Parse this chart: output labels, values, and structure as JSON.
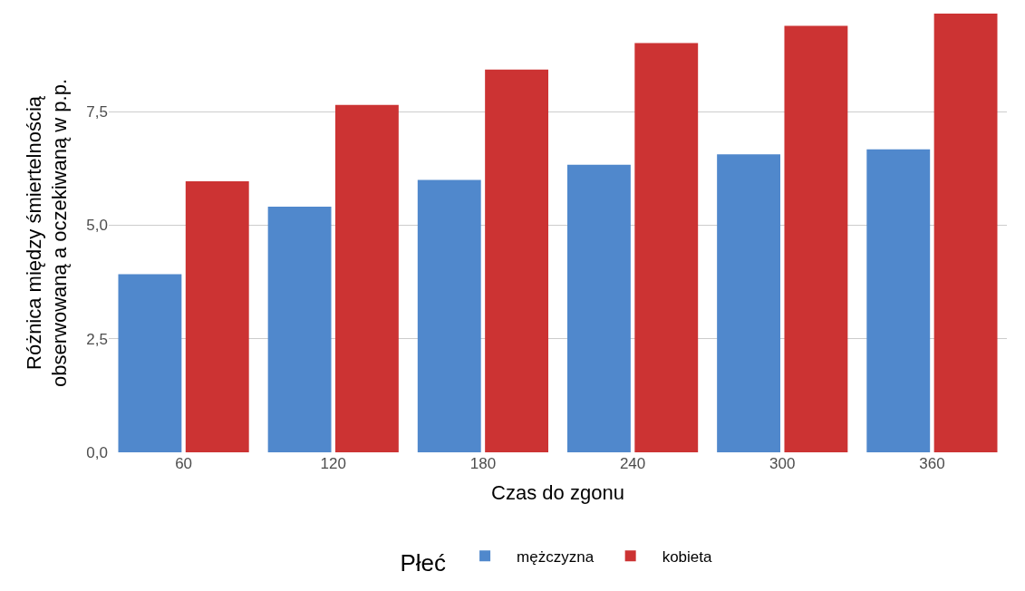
{
  "chart_data": {
    "type": "bar",
    "categories": [
      "60",
      "120",
      "180",
      "240",
      "300",
      "360"
    ],
    "series": [
      {
        "name": "mężczyzna",
        "color": "#5088cc",
        "values": [
          3.92,
          5.41,
          6.0,
          6.33,
          6.56,
          6.67
        ]
      },
      {
        "name": "kobieta",
        "color": "#cc3333",
        "values": [
          5.97,
          7.65,
          8.43,
          9.01,
          9.39,
          9.66
        ]
      }
    ],
    "xlabel": "Czas do zgonu",
    "ylabel": "Różnica między śmiertelnością\nobserwowaną a oczekiwaną w p.p.",
    "legend_title": "Płeć",
    "ylim": [
      0,
      9.66
    ],
    "yticks": [
      {
        "value": 0,
        "label": "0,0"
      },
      {
        "value": 2.5,
        "label": "2,5"
      },
      {
        "value": 5,
        "label": "5,0"
      },
      {
        "value": 7.5,
        "label": "7,5"
      }
    ],
    "grid": "y",
    "legend": "bottom"
  }
}
